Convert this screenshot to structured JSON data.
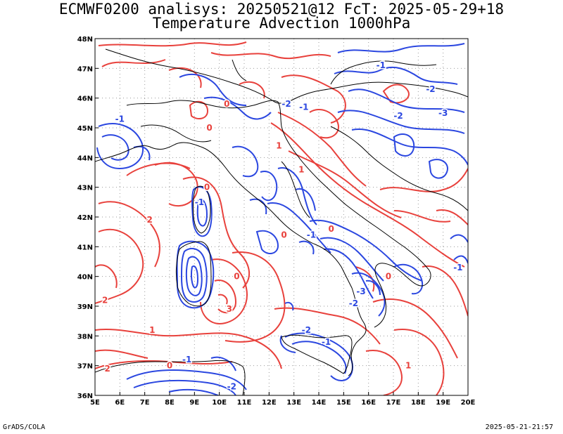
{
  "title_line1": "ECMWF0200 analisys: 20250521@12 FcT: 2025-05-29+18",
  "title_line2": "Temperature Advection 1000hPa",
  "footer_left": "GrADS/COLA",
  "footer_right": "2025-05-21-21:57",
  "map": {
    "region": "Italy",
    "lat_range": [
      36,
      48
    ],
    "lon_range": [
      5,
      20
    ],
    "lat_ticks": [
      "36N",
      "37N",
      "38N",
      "39N",
      "40N",
      "41N",
      "42N",
      "43N",
      "44N",
      "45N",
      "46N",
      "47N",
      "48N"
    ],
    "lon_ticks": [
      "5E",
      "6E",
      "7E",
      "8E",
      "9E",
      "10E",
      "11E",
      "12E",
      "13E",
      "14E",
      "15E",
      "16E",
      "17E",
      "18E",
      "19E",
      "20E"
    ],
    "grid": "dotted",
    "positive_color": "#e8413c",
    "negative_color": "#2b47e0",
    "coast_color": "#000000",
    "contour_labels": [
      {
        "text": "-1",
        "color": "neg",
        "lon": 16.5,
        "lat": 47.1
      },
      {
        "text": "-2",
        "color": "neg",
        "lon": 17.2,
        "lat": 45.4
      },
      {
        "text": "-2",
        "color": "neg",
        "lon": 18.5,
        "lat": 46.3
      },
      {
        "text": "-3",
        "color": "neg",
        "lon": 19.0,
        "lat": 45.5
      },
      {
        "text": "-1",
        "color": "neg",
        "lon": 6.0,
        "lat": 45.3
      },
      {
        "text": "-1",
        "color": "neg",
        "lon": 13.4,
        "lat": 45.7
      },
      {
        "text": "-2",
        "color": "neg",
        "lon": 12.7,
        "lat": 45.8
      },
      {
        "text": "0",
        "color": "pos",
        "lon": 10.3,
        "lat": 45.8
      },
      {
        "text": "0",
        "color": "pos",
        "lon": 9.6,
        "lat": 45.0
      },
      {
        "text": "1",
        "color": "pos",
        "lon": 12.4,
        "lat": 44.4
      },
      {
        "text": "2",
        "color": "pos",
        "lon": 7.2,
        "lat": 41.9
      },
      {
        "text": "0",
        "color": "pos",
        "lon": 9.5,
        "lat": 43.0
      },
      {
        "text": "-1",
        "color": "neg",
        "lon": 9.2,
        "lat": 42.5
      },
      {
        "text": "2",
        "color": "pos",
        "lon": 5.4,
        "lat": 39.2
      },
      {
        "text": "3",
        "color": "pos",
        "lon": 10.4,
        "lat": 38.9
      },
      {
        "text": "1",
        "color": "pos",
        "lon": 7.3,
        "lat": 38.2
      },
      {
        "text": "0",
        "color": "pos",
        "lon": 10.7,
        "lat": 40.0
      },
      {
        "text": "-2",
        "color": "neg",
        "lon": 13.5,
        "lat": 38.2
      },
      {
        "text": "-1",
        "color": "neg",
        "lon": 14.3,
        "lat": 37.8
      },
      {
        "text": "-2",
        "color": "neg",
        "lon": 10.5,
        "lat": 36.3
      },
      {
        "text": "2",
        "color": "pos",
        "lon": 5.5,
        "lat": 36.9
      },
      {
        "text": "0",
        "color": "pos",
        "lon": 8.0,
        "lat": 37.0
      },
      {
        "text": "-1",
        "color": "neg",
        "lon": 8.7,
        "lat": 37.2
      },
      {
        "text": "-3",
        "color": "neg",
        "lon": 15.7,
        "lat": 39.5
      },
      {
        "text": "-2",
        "color": "neg",
        "lon": 15.4,
        "lat": 39.1
      },
      {
        "text": "0",
        "color": "pos",
        "lon": 16.8,
        "lat": 40.0
      },
      {
        "text": "1",
        "color": "pos",
        "lon": 17.6,
        "lat": 37.0
      },
      {
        "text": "0",
        "color": "pos",
        "lon": 14.5,
        "lat": 41.6
      },
      {
        "text": "-1",
        "color": "neg",
        "lon": 13.7,
        "lat": 41.4
      },
      {
        "text": "0",
        "color": "pos",
        "lon": 12.6,
        "lat": 41.4
      },
      {
        "text": "1",
        "color": "pos",
        "lon": 13.3,
        "lat": 43.6
      },
      {
        "text": "-1",
        "color": "neg",
        "lon": 19.6,
        "lat": 40.3
      }
    ]
  }
}
